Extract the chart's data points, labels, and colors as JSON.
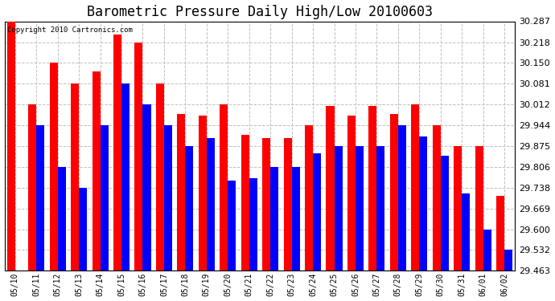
{
  "title": "Barometric Pressure Daily High/Low 20100603",
  "copyright": "Copyright 2010 Cartronics.com",
  "dates": [
    "05/10",
    "05/11",
    "05/12",
    "05/13",
    "05/14",
    "05/15",
    "05/16",
    "05/17",
    "05/18",
    "05/19",
    "05/20",
    "05/21",
    "05/22",
    "05/23",
    "05/24",
    "05/25",
    "05/26",
    "05/27",
    "05/28",
    "05/29",
    "05/30",
    "05/31",
    "06/01",
    "06/02"
  ],
  "highs": [
    30.287,
    30.012,
    30.15,
    30.081,
    30.12,
    30.244,
    30.218,
    30.081,
    29.981,
    29.975,
    30.012,
    29.912,
    29.9,
    29.9,
    29.944,
    30.006,
    29.975,
    30.006,
    29.981,
    30.012,
    29.944,
    29.875,
    29.875,
    29.71
  ],
  "lows": [
    29.463,
    29.944,
    29.806,
    29.738,
    29.944,
    30.081,
    30.012,
    29.944,
    29.875,
    29.9,
    29.762,
    29.769,
    29.806,
    29.806,
    29.85,
    29.875,
    29.875,
    29.875,
    29.944,
    29.906,
    29.844,
    29.719,
    29.6,
    29.532
  ],
  "high_color": "#ff0000",
  "low_color": "#0000ff",
  "bg_color": "#ffffff",
  "plot_bg_color": "#ffffff",
  "grid_color": "#c0c0c0",
  "title_fontsize": 12,
  "ylabel_fontsize": 8,
  "xlabel_fontsize": 7,
  "yticks": [
    29.463,
    29.532,
    29.6,
    29.669,
    29.738,
    29.806,
    29.875,
    29.944,
    30.012,
    30.081,
    30.15,
    30.218,
    30.287
  ],
  "ymin": 29.463,
  "ymax": 30.287
}
